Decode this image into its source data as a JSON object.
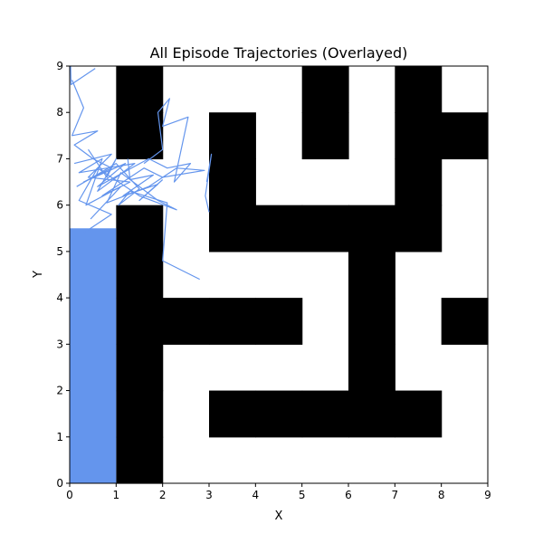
{
  "chart_data": {
    "type": "line",
    "title": "All Episode Trajectories (Overlayed)",
    "xlabel": "X",
    "ylabel": "Y",
    "xlim": [
      0,
      9
    ],
    "ylim": [
      0,
      9
    ],
    "xticks": [
      "0",
      "1",
      "2",
      "3",
      "4",
      "5",
      "6",
      "7",
      "8",
      "9"
    ],
    "yticks": [
      "0",
      "1",
      "2",
      "3",
      "4",
      "5",
      "6",
      "7",
      "8",
      "9"
    ],
    "grid": false,
    "legend": "none",
    "colors": {
      "wall": "#000000",
      "free": "#ffffff",
      "trajectory": "#6495ed"
    },
    "wall_cells": [
      [
        1,
        0
      ],
      [
        1,
        1
      ],
      [
        1,
        2
      ],
      [
        1,
        3
      ],
      [
        1,
        4
      ],
      [
        1,
        5
      ],
      [
        1,
        7
      ],
      [
        1,
        8
      ],
      [
        2,
        3
      ],
      [
        3,
        1
      ],
      [
        3,
        3
      ],
      [
        3,
        5
      ],
      [
        3,
        6
      ],
      [
        3,
        7
      ],
      [
        4,
        1
      ],
      [
        4,
        3
      ],
      [
        4,
        5
      ],
      [
        5,
        1
      ],
      [
        5,
        5
      ],
      [
        5,
        7
      ],
      [
        5,
        8
      ],
      [
        6,
        1
      ],
      [
        6,
        2
      ],
      [
        6,
        3
      ],
      [
        6,
        4
      ],
      [
        6,
        5
      ],
      [
        7,
        1
      ],
      [
        7,
        5
      ],
      [
        7,
        6
      ],
      [
        7,
        7
      ],
      [
        7,
        8
      ],
      [
        8,
        3
      ],
      [
        8,
        7
      ]
    ],
    "trajectories": [
      [
        [
          0.02,
          9.0
        ],
        [
          0.03,
          8.6
        ],
        [
          0.55,
          8.95
        ]
      ],
      [
        [
          0.05,
          8.7
        ],
        [
          0.3,
          8.1
        ],
        [
          0.05,
          7.5
        ],
        [
          0.6,
          7.6
        ],
        [
          0.1,
          7.3
        ],
        [
          0.5,
          7.0
        ],
        [
          0.9,
          6.8
        ],
        [
          0.3,
          6.5
        ],
        [
          1.2,
          6.9
        ],
        [
          0.6,
          6.4
        ],
        [
          1.7,
          7.0
        ],
        [
          2.1,
          6.8
        ],
        [
          2.6,
          6.9
        ],
        [
          2.25,
          6.5
        ],
        [
          2.55,
          7.9
        ],
        [
          2.0,
          7.7
        ],
        [
          2.15,
          8.3
        ],
        [
          1.9,
          8.0
        ],
        [
          2.0,
          7.2
        ],
        [
          1.6,
          6.9
        ]
      ],
      [
        [
          0.1,
          6.9
        ],
        [
          0.9,
          7.1
        ],
        [
          0.4,
          6.6
        ],
        [
          1.3,
          6.5
        ],
        [
          0.7,
          6.2
        ],
        [
          1.6,
          6.8
        ],
        [
          2.0,
          6.6
        ],
        [
          2.9,
          6.75
        ],
        [
          2.3,
          6.8
        ],
        [
          1.7,
          6.4
        ],
        [
          0.8,
          6.05
        ],
        [
          1.1,
          6.7
        ],
        [
          1.9,
          6.1
        ],
        [
          2.3,
          5.9
        ],
        [
          1.5,
          6.2
        ],
        [
          0.6,
          6.8
        ],
        [
          0.2,
          6.1
        ],
        [
          0.9,
          5.8
        ],
        [
          0.3,
          5.4
        ]
      ],
      [
        [
          0.15,
          6.4
        ],
        [
          1.0,
          6.9
        ],
        [
          1.5,
          6.35
        ],
        [
          1.05,
          6.0
        ],
        [
          1.3,
          6.3
        ],
        [
          2.1,
          6.05
        ],
        [
          2.0,
          4.8
        ],
        [
          2.8,
          4.4
        ]
      ],
      [
        [
          2.95,
          6.5
        ],
        [
          3.05,
          7.1
        ],
        [
          2.92,
          6.2
        ],
        [
          3.0,
          5.85
        ]
      ],
      [
        [
          1.25,
          7.0
        ],
        [
          1.3,
          6.55
        ],
        [
          1.8,
          6.65
        ],
        [
          1.15,
          6.2
        ],
        [
          1.9,
          6.45
        ],
        [
          1.5,
          6.1
        ],
        [
          2.0,
          6.55
        ]
      ],
      [
        [
          0.4,
          7.2
        ],
        [
          0.8,
          6.6
        ],
        [
          1.0,
          7.0
        ],
        [
          0.6,
          6.3
        ],
        [
          1.4,
          6.9
        ],
        [
          0.2,
          6.7
        ],
        [
          0.7,
          7.0
        ],
        [
          0.35,
          6.0
        ],
        [
          1.1,
          6.4
        ],
        [
          0.45,
          5.7
        ]
      ]
    ],
    "fill_region": {
      "x": [
        0,
        1.0
      ],
      "y": [
        0,
        5.5
      ]
    }
  }
}
